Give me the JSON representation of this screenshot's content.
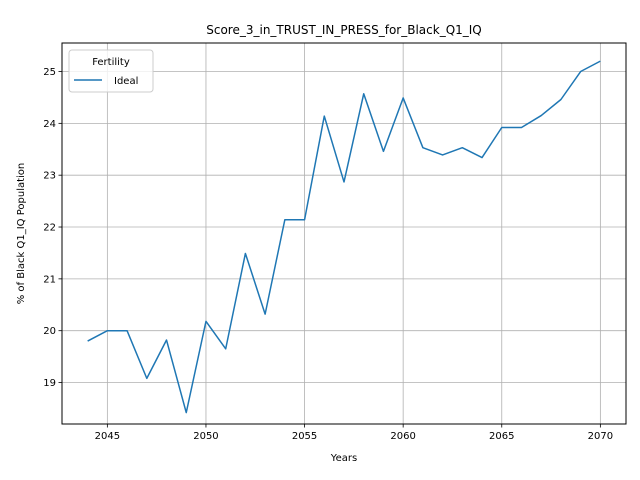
{
  "chart_data": {
    "type": "line",
    "title": "Score_3_in_TRUST_IN_PRESS_for_Black_Q1_IQ",
    "xlabel": "Years",
    "ylabel": "% of Black Q1_IQ Population",
    "xlim": [
      2042.7,
      2071.3
    ],
    "ylim": [
      18.2,
      25.55
    ],
    "x_ticks": [
      2045,
      2050,
      2055,
      2060,
      2065,
      2070
    ],
    "y_ticks": [
      19,
      20,
      21,
      22,
      23,
      24,
      25
    ],
    "grid": true,
    "legend": {
      "title": "Fertility",
      "placement": "upper-left"
    },
    "series": [
      {
        "name": "Ideal",
        "color": "#1f77b4",
        "x": [
          2044,
          2045,
          2046,
          2047,
          2048,
          2049,
          2050,
          2051,
          2052,
          2053,
          2054,
          2055,
          2056,
          2057,
          2058,
          2059,
          2060,
          2061,
          2062,
          2063,
          2064,
          2065,
          2066,
          2067,
          2068,
          2069,
          2070
        ],
        "y": [
          19.8,
          20.0,
          20.0,
          19.08,
          19.82,
          18.42,
          20.18,
          19.65,
          21.49,
          20.32,
          22.14,
          22.14,
          24.14,
          22.87,
          24.57,
          23.46,
          24.49,
          23.53,
          23.39,
          23.53,
          23.34,
          23.92,
          23.92,
          24.15,
          24.46,
          25.0,
          25.2
        ]
      }
    ]
  }
}
